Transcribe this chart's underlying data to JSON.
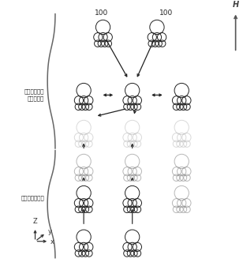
{
  "bg_color": "#ffffff",
  "label_perpendicular_1": "磁場に垂直な",
  "label_perpendicular_2": "面内の配列",
  "label_parallel": "磁場方向の配列",
  "label_100_left": "100",
  "label_100_right": "100",
  "label_H": "H",
  "axis_label_z": "Z",
  "axis_label_y": "y",
  "axis_label_x": "x",
  "dark_color": "#222222",
  "medium_color": "#888888",
  "light_color": "#bbbbbb",
  "arrow_color": "#333333"
}
